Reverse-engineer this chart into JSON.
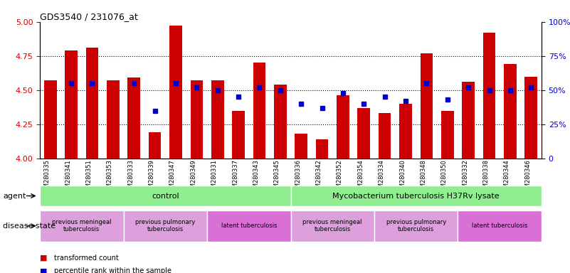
{
  "title": "GDS3540 / 231076_at",
  "samples": [
    "GSM280335",
    "GSM280341",
    "GSM280351",
    "GSM280353",
    "GSM280333",
    "GSM280339",
    "GSM280347",
    "GSM280349",
    "GSM280331",
    "GSM280337",
    "GSM280343",
    "GSM280345",
    "GSM280336",
    "GSM280342",
    "GSM280352",
    "GSM280354",
    "GSM280334",
    "GSM280340",
    "GSM280348",
    "GSM280350",
    "GSM280332",
    "GSM280338",
    "GSM280344",
    "GSM280346"
  ],
  "bar_values": [
    4.57,
    4.79,
    4.81,
    4.57,
    4.59,
    4.19,
    4.97,
    4.57,
    4.57,
    4.35,
    4.7,
    4.54,
    4.18,
    4.14,
    4.46,
    4.37,
    4.33,
    4.4,
    4.77,
    4.35,
    4.56,
    4.92,
    4.69,
    4.6
  ],
  "dot_values": [
    null,
    55,
    55,
    null,
    55,
    35,
    55,
    52,
    50,
    45,
    52,
    50,
    40,
    37,
    48,
    40,
    45,
    42,
    55,
    43,
    52,
    50,
    50,
    52
  ],
  "bar_color": "#cc0000",
  "dot_color": "#0000cc",
  "ylim_left": [
    4.0,
    5.0
  ],
  "ylim_right": [
    0,
    100
  ],
  "yticks_left": [
    4.0,
    4.25,
    4.5,
    4.75,
    5.0
  ],
  "yticks_right": [
    0,
    25,
    50,
    75,
    100
  ],
  "grid_lines": [
    4.25,
    4.5,
    4.75
  ],
  "agent_groups": [
    {
      "label": "control",
      "start": 0,
      "end": 11,
      "color": "#90EE90"
    },
    {
      "label": "Mycobacterium tuberculosis H37Rv lysate",
      "start": 12,
      "end": 23,
      "color": "#90EE90"
    }
  ],
  "disease_groups": [
    {
      "label": "previous meningeal\ntuberculosis",
      "start": 0,
      "end": 3,
      "color": "#DDA0DD"
    },
    {
      "label": "previous pulmonary\ntuberculosis",
      "start": 4,
      "end": 7,
      "color": "#DDA0DD"
    },
    {
      "label": "latent tuberculosis",
      "start": 8,
      "end": 11,
      "color": "#DA70D6"
    },
    {
      "label": "previous meningeal\ntuberculosis",
      "start": 12,
      "end": 15,
      "color": "#DDA0DD"
    },
    {
      "label": "previous pulmonary\ntuberculosis",
      "start": 16,
      "end": 19,
      "color": "#DDA0DD"
    },
    {
      "label": "latent tuberculosis",
      "start": 20,
      "end": 23,
      "color": "#DA70D6"
    }
  ],
  "legend_items": [
    {
      "label": "transformed count",
      "color": "#cc0000"
    },
    {
      "label": "percentile rank within the sample",
      "color": "#0000cc"
    }
  ],
  "bg_color": "#ffffff",
  "tick_color_left": "#cc0000",
  "tick_color_right": "#0000cc"
}
